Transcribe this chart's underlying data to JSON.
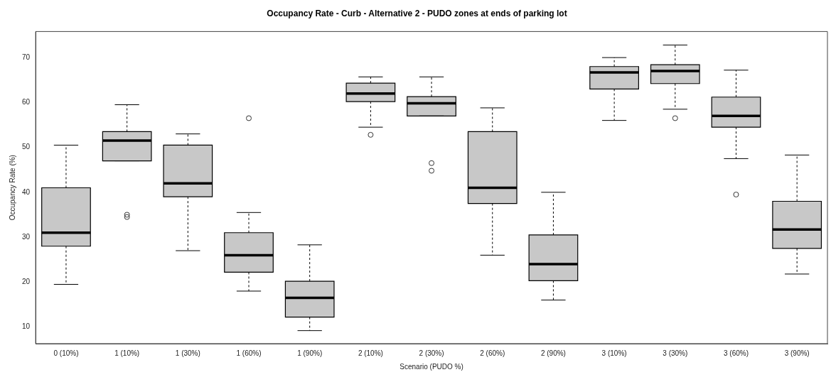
{
  "chart_data": {
    "type": "box",
    "title": "Occupancy Rate - Curb - Alternative 2 - PUDO zones at ends of parking lot",
    "xlabel": "Scenario (PUDO %)",
    "ylabel": "Occupancy Rate (%)",
    "categories": [
      "0 (10%)",
      "1 (10%)",
      "1 (30%)",
      "1 (60%)",
      "1 (90%)",
      "2 (10%)",
      "2 (30%)",
      "2 (60%)",
      "2 (90%)",
      "3 (10%)",
      "3 (30%)",
      "3 (60%)",
      "3 (90%)"
    ],
    "color": "#c8c8c8",
    "ylim": [
      6.3,
      75.8
    ],
    "yticks": [
      10,
      20,
      30,
      40,
      50,
      60,
      70
    ],
    "boxes": [
      {
        "low": 19.5,
        "q1": 28,
        "median": 31,
        "q3": 41,
        "high": 50.5
      },
      {
        "low": 47,
        "q1": 47,
        "median": 51.5,
        "q3": 53.5,
        "high": 59.5,
        "outliers": [
          35,
          34.5
        ]
      },
      {
        "low": 27,
        "q1": 39,
        "median": 42,
        "q3": 50.5,
        "high": 53
      },
      {
        "low": 18,
        "q1": 22.2,
        "median": 26,
        "q3": 31,
        "high": 35.5,
        "outliers": [
          56.5
        ]
      },
      {
        "low": 9.2,
        "q1": 12.2,
        "median": 16.5,
        "q3": 20.2,
        "high": 28.3
      },
      {
        "low": 54.5,
        "q1": 60.2,
        "median": 62,
        "q3": 64.3,
        "high": 65.7,
        "outliers": [
          52.8
        ]
      },
      {
        "low": 57,
        "q1": 57,
        "median": 59.8,
        "q3": 61.3,
        "high": 65.7,
        "outliers": [
          46.5,
          44.8
        ]
      },
      {
        "low": 26,
        "q1": 37.5,
        "median": 41,
        "q3": 53.5,
        "high": 58.8
      },
      {
        "low": 16,
        "q1": 20.3,
        "median": 24,
        "q3": 30.5,
        "high": 40
      },
      {
        "low": 56,
        "q1": 63,
        "median": 66.7,
        "q3": 68,
        "high": 70
      },
      {
        "low": 58.5,
        "q1": 64.2,
        "median": 67,
        "q3": 68.4,
        "high": 72.8,
        "outliers": [
          56.5
        ]
      },
      {
        "low": 47.5,
        "q1": 54.5,
        "median": 57,
        "q3": 61.2,
        "high": 67.2,
        "outliers": [
          39.5
        ]
      },
      {
        "low": 21.8,
        "q1": 27.5,
        "median": 31.7,
        "q3": 38,
        "high": 48.3
      }
    ]
  }
}
